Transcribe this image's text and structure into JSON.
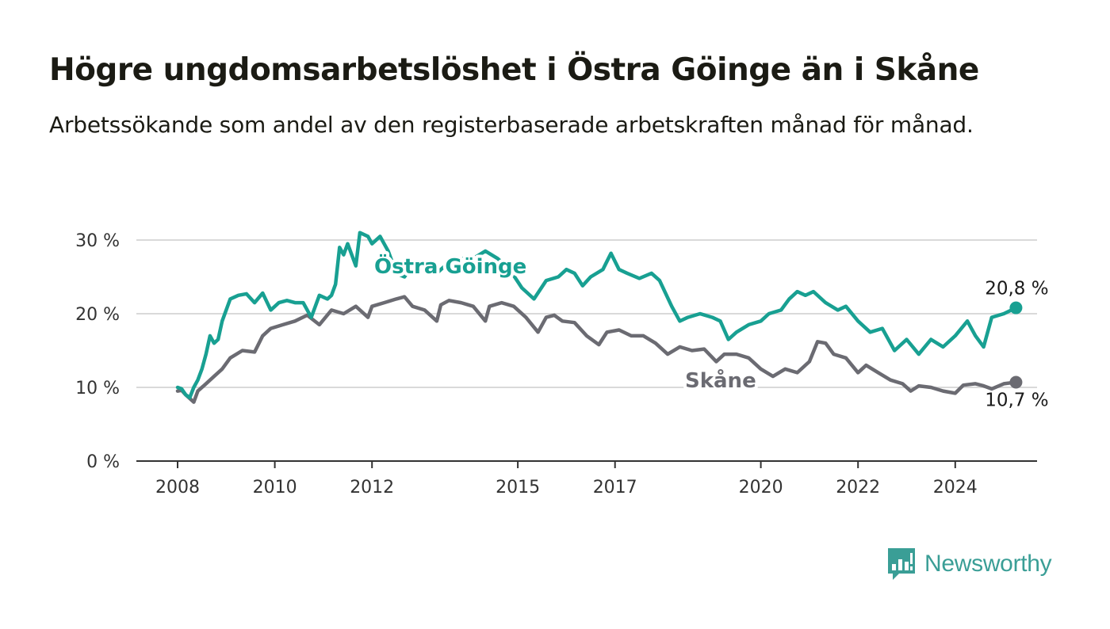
{
  "title": "Högre ungdomsarbetslöshet i Östra Göinge än i Skåne",
  "subtitle": "Arbetssökande som andel av den registerbaserade arbetskraften månad för månad.",
  "brand": {
    "name": "Newsworthy",
    "icon": "bar-chart-speech-bubble-icon",
    "color": "#3a9e96"
  },
  "chart_data": {
    "type": "line",
    "x_axis": {
      "ticks": [
        "2008",
        "2010",
        "2012",
        "2015",
        "2017",
        "2020",
        "2022",
        "2024"
      ],
      "range": [
        "2008-01",
        "2025-12"
      ]
    },
    "y_axis": {
      "ticks": [
        "0 %",
        "10 %",
        "20 %",
        "30 %"
      ],
      "range": [
        0,
        30
      ],
      "grid": true
    },
    "series": [
      {
        "name": "Östra Göinge",
        "color": "#18a092",
        "end_label": "20,8 %",
        "end_value": 20.8,
        "points": [
          [
            "2008-01",
            10.0
          ],
          [
            "2008-02",
            9.8
          ],
          [
            "2008-03",
            9.0
          ],
          [
            "2008-04",
            8.6
          ],
          [
            "2008-05",
            10.0
          ],
          [
            "2008-06",
            11.0
          ],
          [
            "2008-07",
            12.5
          ],
          [
            "2008-08",
            14.5
          ],
          [
            "2008-09",
            17.0
          ],
          [
            "2008-10",
            16.0
          ],
          [
            "2008-11",
            16.5
          ],
          [
            "2008-12",
            19.0
          ],
          [
            "2009-02",
            22.0
          ],
          [
            "2009-04",
            22.5
          ],
          [
            "2009-06",
            22.7
          ],
          [
            "2009-08",
            21.5
          ],
          [
            "2009-10",
            22.8
          ],
          [
            "2009-12",
            20.5
          ],
          [
            "2010-02",
            21.5
          ],
          [
            "2010-04",
            21.8
          ],
          [
            "2010-06",
            21.5
          ],
          [
            "2010-08",
            21.5
          ],
          [
            "2010-10",
            19.5
          ],
          [
            "2010-12",
            22.5
          ],
          [
            "2011-02",
            22.0
          ],
          [
            "2011-03",
            22.5
          ],
          [
            "2011-04",
            24.0
          ],
          [
            "2011-05",
            29.0
          ],
          [
            "2011-06",
            28.0
          ],
          [
            "2011-07",
            29.5
          ],
          [
            "2011-09",
            26.5
          ],
          [
            "2011-10",
            31.0
          ],
          [
            "2011-12",
            30.5
          ],
          [
            "2012-01",
            29.5
          ],
          [
            "2012-03",
            30.5
          ],
          [
            "2012-05",
            28.5
          ],
          [
            "2012-07",
            25.5
          ],
          [
            "2012-09",
            25.0
          ],
          [
            "2012-11",
            26.5
          ],
          [
            "2013-02",
            26.5
          ],
          [
            "2013-05",
            25.5
          ],
          [
            "2013-08",
            27.0
          ],
          [
            "2013-11",
            27.5
          ],
          [
            "2014-02",
            27.5
          ],
          [
            "2014-05",
            28.5
          ],
          [
            "2014-08",
            27.5
          ],
          [
            "2014-11",
            26.0
          ],
          [
            "2015-02",
            23.5
          ],
          [
            "2015-05",
            22.0
          ],
          [
            "2015-08",
            24.5
          ],
          [
            "2015-11",
            25.0
          ],
          [
            "2016-01",
            26.0
          ],
          [
            "2016-03",
            25.5
          ],
          [
            "2016-05",
            23.8
          ],
          [
            "2016-07",
            25.0
          ],
          [
            "2016-10",
            26.0
          ],
          [
            "2016-12",
            28.2
          ],
          [
            "2017-02",
            26.0
          ],
          [
            "2017-04",
            25.5
          ],
          [
            "2017-07",
            24.8
          ],
          [
            "2017-10",
            25.5
          ],
          [
            "2017-12",
            24.5
          ],
          [
            "2018-03",
            21.0
          ],
          [
            "2018-05",
            19.0
          ],
          [
            "2018-07",
            19.5
          ],
          [
            "2018-10",
            20.0
          ],
          [
            "2019-01",
            19.5
          ],
          [
            "2019-03",
            19.0
          ],
          [
            "2019-05",
            16.5
          ],
          [
            "2019-07",
            17.5
          ],
          [
            "2019-10",
            18.5
          ],
          [
            "2020-01",
            19.0
          ],
          [
            "2020-03",
            20.0
          ],
          [
            "2020-06",
            20.5
          ],
          [
            "2020-08",
            22.0
          ],
          [
            "2020-10",
            23.0
          ],
          [
            "2020-12",
            22.5
          ],
          [
            "2021-02",
            23.0
          ],
          [
            "2021-05",
            21.5
          ],
          [
            "2021-08",
            20.5
          ],
          [
            "2021-10",
            21.0
          ],
          [
            "2022-01",
            19.0
          ],
          [
            "2022-04",
            17.5
          ],
          [
            "2022-07",
            18.0
          ],
          [
            "2022-10",
            15.0
          ],
          [
            "2023-01",
            16.5
          ],
          [
            "2023-04",
            14.5
          ],
          [
            "2023-07",
            16.5
          ],
          [
            "2023-10",
            15.5
          ],
          [
            "2024-01",
            17.0
          ],
          [
            "2024-04",
            19.0
          ],
          [
            "2024-06",
            17.0
          ],
          [
            "2024-08",
            15.5
          ],
          [
            "2024-10",
            19.5
          ],
          [
            "2025-01",
            20.0
          ],
          [
            "2025-04",
            20.8
          ]
        ]
      },
      {
        "name": "Skåne",
        "color": "#6b6b72",
        "end_label": "10,7 %",
        "end_value": 10.7,
        "points": [
          [
            "2008-01",
            9.5
          ],
          [
            "2008-02",
            9.6
          ],
          [
            "2008-03",
            9.0
          ],
          [
            "2008-04",
            8.5
          ],
          [
            "2008-05",
            8.0
          ],
          [
            "2008-06",
            9.5
          ],
          [
            "2008-08",
            10.5
          ],
          [
            "2008-10",
            11.5
          ],
          [
            "2008-12",
            12.5
          ],
          [
            "2009-02",
            14.0
          ],
          [
            "2009-05",
            15.0
          ],
          [
            "2009-08",
            14.8
          ],
          [
            "2009-10",
            17.0
          ],
          [
            "2009-12",
            18.0
          ],
          [
            "2010-03",
            18.5
          ],
          [
            "2010-06",
            19.0
          ],
          [
            "2010-09",
            19.8
          ],
          [
            "2010-12",
            18.5
          ],
          [
            "2011-03",
            20.5
          ],
          [
            "2011-06",
            20.0
          ],
          [
            "2011-09",
            21.0
          ],
          [
            "2011-12",
            19.5
          ],
          [
            "2012-01",
            21.0
          ],
          [
            "2012-04",
            21.5
          ],
          [
            "2012-07",
            22.0
          ],
          [
            "2012-09",
            22.3
          ],
          [
            "2012-11",
            21.0
          ],
          [
            "2013-02",
            20.5
          ],
          [
            "2013-05",
            19.0
          ],
          [
            "2013-06",
            21.2
          ],
          [
            "2013-08",
            21.8
          ],
          [
            "2013-11",
            21.5
          ],
          [
            "2014-02",
            21.0
          ],
          [
            "2014-05",
            19.0
          ],
          [
            "2014-06",
            21.0
          ],
          [
            "2014-09",
            21.5
          ],
          [
            "2014-12",
            21.0
          ],
          [
            "2015-03",
            19.5
          ],
          [
            "2015-06",
            17.5
          ],
          [
            "2015-08",
            19.5
          ],
          [
            "2015-10",
            19.8
          ],
          [
            "2015-12",
            19.0
          ],
          [
            "2016-03",
            18.8
          ],
          [
            "2016-06",
            17.0
          ],
          [
            "2016-09",
            15.8
          ],
          [
            "2016-11",
            17.5
          ],
          [
            "2017-02",
            17.8
          ],
          [
            "2017-05",
            17.0
          ],
          [
            "2017-08",
            17.0
          ],
          [
            "2017-11",
            16.0
          ],
          [
            "2018-02",
            14.5
          ],
          [
            "2018-05",
            15.5
          ],
          [
            "2018-08",
            15.0
          ],
          [
            "2018-11",
            15.2
          ],
          [
            "2019-02",
            13.5
          ],
          [
            "2019-04",
            14.5
          ],
          [
            "2019-07",
            14.5
          ],
          [
            "2019-10",
            14.0
          ],
          [
            "2020-01",
            12.5
          ],
          [
            "2020-04",
            11.5
          ],
          [
            "2020-07",
            12.5
          ],
          [
            "2020-10",
            12.0
          ],
          [
            "2021-01",
            13.5
          ],
          [
            "2021-03",
            16.2
          ],
          [
            "2021-05",
            16.0
          ],
          [
            "2021-07",
            14.5
          ],
          [
            "2021-10",
            14.0
          ],
          [
            "2022-01",
            12.0
          ],
          [
            "2022-03",
            13.0
          ],
          [
            "2022-06",
            12.0
          ],
          [
            "2022-09",
            11.0
          ],
          [
            "2022-12",
            10.5
          ],
          [
            "2023-02",
            9.5
          ],
          [
            "2023-04",
            10.2
          ],
          [
            "2023-07",
            10.0
          ],
          [
            "2023-10",
            9.5
          ],
          [
            "2024-01",
            9.2
          ],
          [
            "2024-03",
            10.3
          ],
          [
            "2024-06",
            10.5
          ],
          [
            "2024-08",
            10.2
          ],
          [
            "2024-10",
            9.8
          ],
          [
            "2025-01",
            10.5
          ],
          [
            "2025-04",
            10.7
          ]
        ]
      }
    ]
  }
}
